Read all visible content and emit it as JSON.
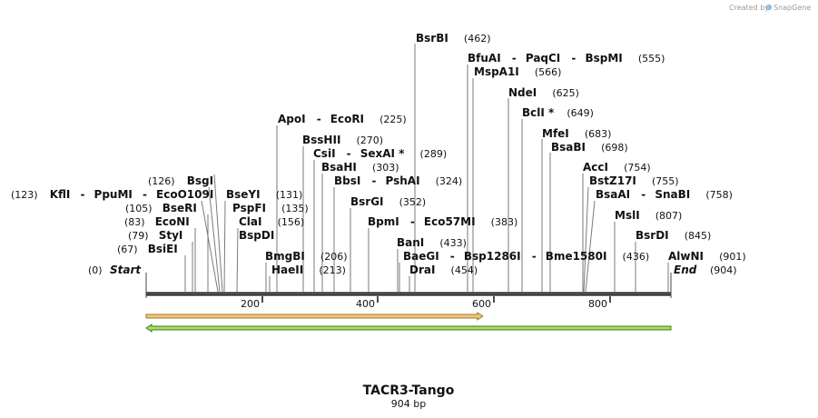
{
  "credit": {
    "text": "Created by",
    "brand": "SnapGene"
  },
  "map": {
    "title": "TACR3-Tango",
    "length_label": "904 bp",
    "length": 904,
    "start_label": "Start",
    "start_pos": "(0)",
    "end_label": "End",
    "end_pos": "(904)",
    "ticks": [
      "200",
      "400",
      "600",
      "800"
    ]
  },
  "sites": [
    {
      "id": "bsiei",
      "pos": 67,
      "pos_label": "(67)",
      "names": [
        "BsiEI"
      ]
    },
    {
      "id": "styi",
      "pos": 79,
      "pos_label": "(79)",
      "names": [
        "StyI"
      ]
    },
    {
      "id": "ecoNi",
      "pos": 83,
      "pos_label": "(83)",
      "names": [
        "EcoNI"
      ]
    },
    {
      "id": "bseri",
      "pos": 105,
      "pos_label": "(105)",
      "names": [
        "BseRI"
      ]
    },
    {
      "id": "kfli",
      "pos": 123,
      "pos_label": "(123)",
      "names": [
        "KflI",
        "PpuMI",
        "EcoO109I"
      ]
    },
    {
      "id": "bsgi",
      "pos": 126,
      "pos_label": "(126)",
      "names": [
        "BsgI"
      ]
    },
    {
      "id": "bseyi",
      "pos": 131,
      "pos_label": "(131)",
      "names": [
        "BseYI"
      ]
    },
    {
      "id": "pspfi",
      "pos": 135,
      "pos_label": "(135)",
      "names": [
        "PspFI"
      ]
    },
    {
      "id": "clai",
      "pos": 156,
      "pos_label": "(156)",
      "names": [
        "ClaI"
      ]
    },
    {
      "id": "bspdi",
      "pos": 156,
      "pos_label": "",
      "names": [
        "BspDI"
      ]
    },
    {
      "id": "bmgbi",
      "pos": 206,
      "pos_label": "(206)",
      "names": [
        "BmgBI"
      ]
    },
    {
      "id": "haeii",
      "pos": 213,
      "pos_label": "(213)",
      "names": [
        "HaeII"
      ]
    },
    {
      "id": "apoi",
      "pos": 225,
      "pos_label": "(225)",
      "names": [
        "ApoI",
        "EcoRI"
      ]
    },
    {
      "id": "bsshii",
      "pos": 270,
      "pos_label": "(270)",
      "names": [
        "BssHII"
      ]
    },
    {
      "id": "csii",
      "pos": 289,
      "pos_label": "(289)",
      "names": [
        "CsiI",
        "SexAI *"
      ]
    },
    {
      "id": "bsahi",
      "pos": 303,
      "pos_label": "(303)",
      "names": [
        "BsaHI"
      ]
    },
    {
      "id": "bbsi",
      "pos": 324,
      "pos_label": "(324)",
      "names": [
        "BbsI",
        "PshAI"
      ]
    },
    {
      "id": "bsrgi",
      "pos": 352,
      "pos_label": "(352)",
      "names": [
        "BsrGI"
      ]
    },
    {
      "id": "bpmi",
      "pos": 383,
      "pos_label": "(383)",
      "names": [
        "BpmI",
        "Eco57MI"
      ]
    },
    {
      "id": "bani",
      "pos": 433,
      "pos_label": "(433)",
      "names": [
        "BanI"
      ]
    },
    {
      "id": "baegi",
      "pos": 436,
      "pos_label": "(436)",
      "names": [
        "BaeGI",
        "Bsp1286I",
        "Bme1580I"
      ]
    },
    {
      "id": "drai",
      "pos": 454,
      "pos_label": "(454)",
      "names": [
        "DraI"
      ]
    },
    {
      "id": "bsrbi",
      "pos": 462,
      "pos_label": "(462)",
      "names": [
        "BsrBI"
      ]
    },
    {
      "id": "bfuai",
      "pos": 555,
      "pos_label": "(555)",
      "names": [
        "BfuAI",
        "PaqCI",
        "BspMI"
      ]
    },
    {
      "id": "mspa1i",
      "pos": 566,
      "pos_label": "(566)",
      "names": [
        "MspA1I"
      ]
    },
    {
      "id": "ndei",
      "pos": 625,
      "pos_label": "(625)",
      "names": [
        "NdeI"
      ]
    },
    {
      "id": "bcli",
      "pos": 649,
      "pos_label": "(649)",
      "names": [
        "BclI *"
      ]
    },
    {
      "id": "mfei",
      "pos": 683,
      "pos_label": "(683)",
      "names": [
        "MfeI"
      ]
    },
    {
      "id": "bsabi",
      "pos": 698,
      "pos_label": "(698)",
      "names": [
        "BsaBI"
      ]
    },
    {
      "id": "acci",
      "pos": 754,
      "pos_label": "(754)",
      "names": [
        "AccI"
      ]
    },
    {
      "id": "bstz17i",
      "pos": 755,
      "pos_label": "(755)",
      "names": [
        "BstZ17I"
      ]
    },
    {
      "id": "bsaai",
      "pos": 758,
      "pos_label": "(758)",
      "names": [
        "BsaAI",
        "SnaBI"
      ]
    },
    {
      "id": "msli",
      "pos": 807,
      "pos_label": "(807)",
      "names": [
        "MslI"
      ]
    },
    {
      "id": "bsrdi",
      "pos": 845,
      "pos_label": "(845)",
      "names": [
        "BsrDI"
      ]
    },
    {
      "id": "alwni",
      "pos": 901,
      "pos_label": "(901)",
      "names": [
        "AlwNI"
      ]
    }
  ],
  "features": [
    {
      "id": "feature-orange",
      "start": 1,
      "end": 580,
      "direction": "forward",
      "fill": "#f3c47a",
      "stroke": "#9a7a2e"
    },
    {
      "id": "feature-green",
      "start": 1,
      "end": 904,
      "direction": "reverse",
      "fill": "#a8dd63",
      "stroke": "#3f7f1a"
    }
  ]
}
